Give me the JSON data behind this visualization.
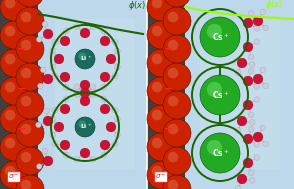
{
  "fig_width": 2.94,
  "fig_height": 1.89,
  "dpi": 100,
  "left_bg": "#b8d8ea",
  "right_bg": "#b8d8ea",
  "outer_bg": "#404040",
  "divider_color": "#ffffff",
  "electrode_sphere_color": "#cc2200",
  "electrode_sphere_dark": "#5a1500",
  "electrode_sphere_highlight": "#dd6644",
  "electrode_r": 0.072,
  "li_color": "#1a6b5c",
  "li_highlight": "#3aab8c",
  "li_r": 0.048,
  "cs_color": "#22aa22",
  "cs_highlight": "#66dd66",
  "cs_r": 0.082,
  "shell_color": "#1a6500",
  "shell_lw": 1.4,
  "water_o_color": "#cc1133",
  "water_h_color": "#ccccdd",
  "water_o_r": 0.026,
  "water_h_r": 0.015,
  "phi_left_color": "#1a6500",
  "phi_right_color": "#99ff00",
  "minus_color": "#ff2222",
  "sigma_box_color": "#ff2222"
}
